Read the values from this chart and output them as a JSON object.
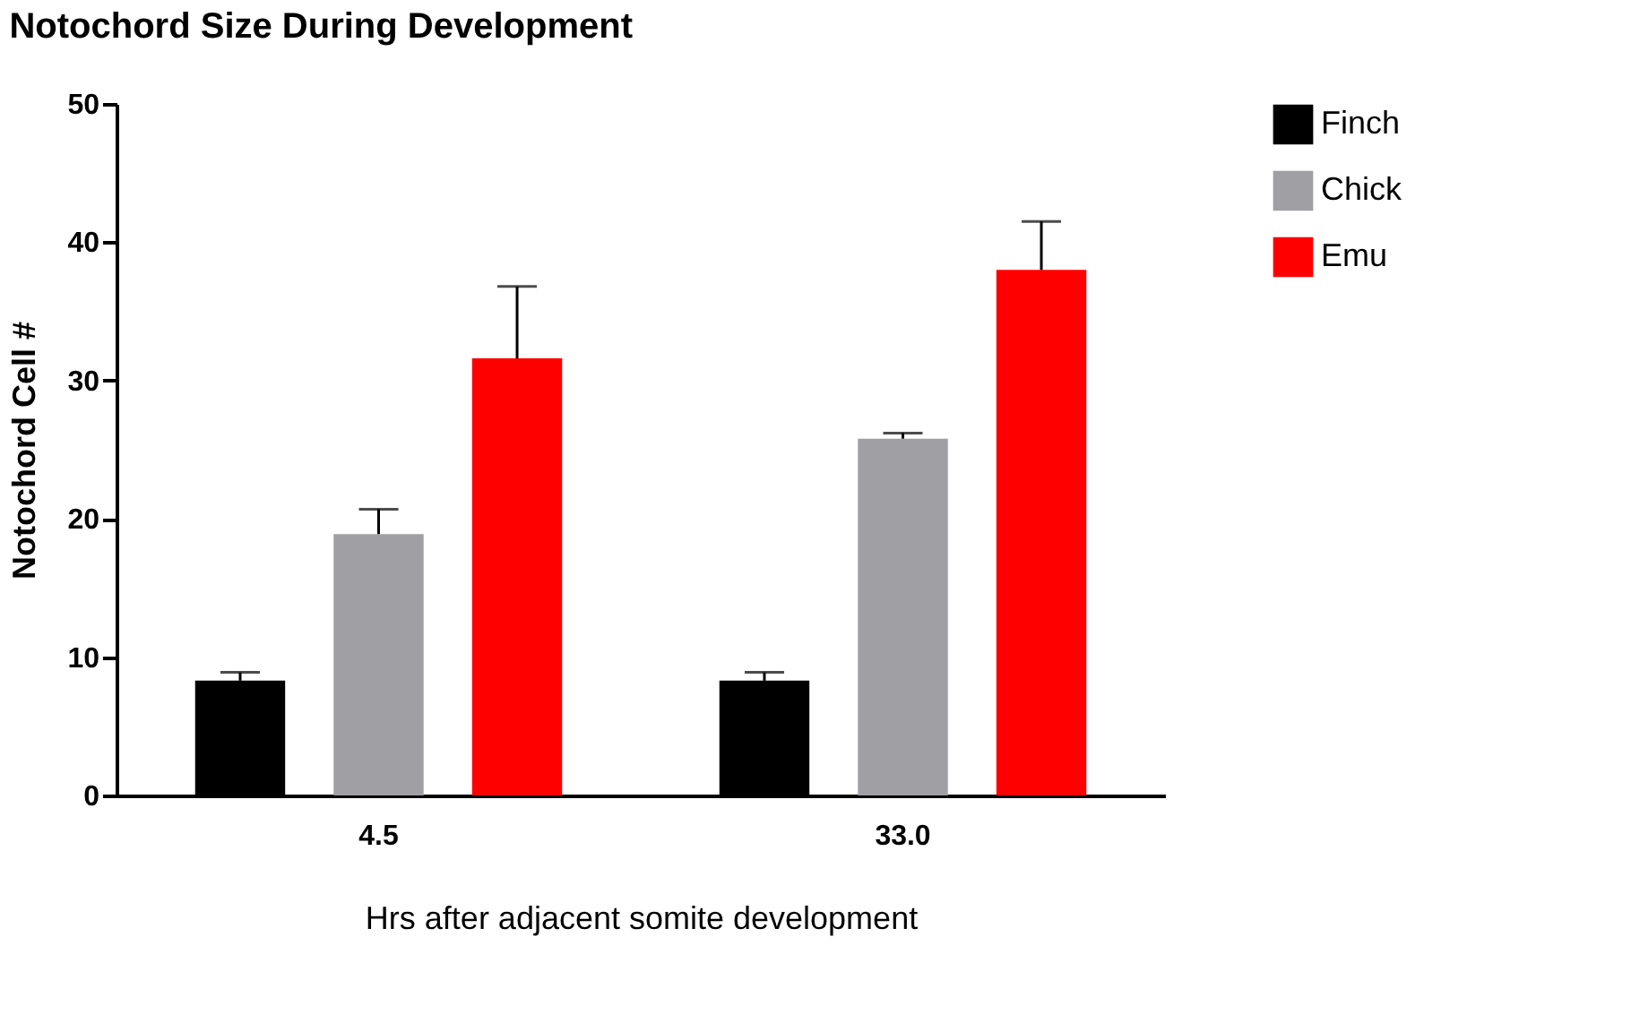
{
  "chart_data": {
    "type": "bar",
    "title": "Notochord Size During Development",
    "xlabel": "Hrs after adjacent somite development",
    "ylabel": "Notochord Cell #",
    "categories": [
      "4.5",
      "33.0"
    ],
    "series": [
      {
        "name": "Finch",
        "color": "#000000",
        "values": [
          8.3,
          8.3
        ],
        "errors": [
          [
            8.3,
            8.9
          ],
          [
            8.3,
            8.9
          ]
        ]
      },
      {
        "name": "Chick",
        "color": "#a0a0a4",
        "values": [
          18.9,
          25.8
        ],
        "errors": [
          [
            18.9,
            20.7
          ],
          [
            25.8,
            26.2
          ]
        ]
      },
      {
        "name": "Emu",
        "color": "#ff0000",
        "values": [
          31.6,
          38.0
        ],
        "errors": [
          [
            31.6,
            36.8
          ],
          [
            38.0,
            41.5
          ]
        ]
      }
    ],
    "ylim": [
      0,
      50
    ],
    "yticks": [
      0,
      10,
      20,
      30,
      40,
      50
    ],
    "grid": false,
    "legend": "right"
  }
}
